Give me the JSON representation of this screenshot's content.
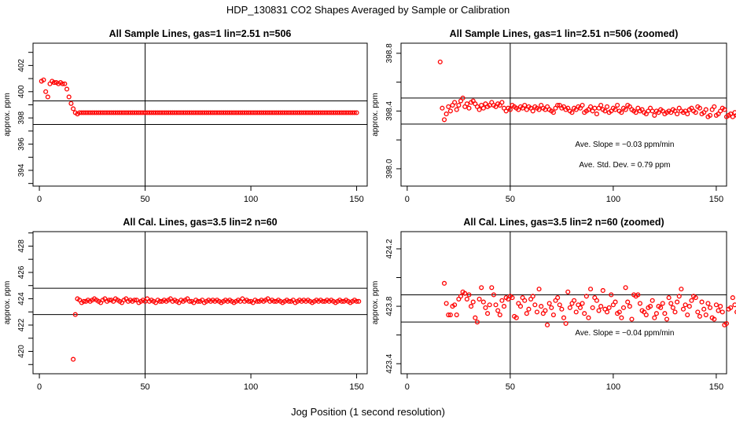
{
  "page": {
    "title": "HDP_130831  CO2 Shapes Averaged by Sample or Calibration",
    "xlabel": "Jog Position (1 second resolution)"
  },
  "colors": {
    "points": "#ff0000",
    "lines": "#000000"
  },
  "chart_data": [
    {
      "type": "scatter",
      "title": "All Sample Lines, gas=1 lin=2.51 n=506",
      "xlabel": "",
      "ylabel": "approx. ppm",
      "xlim": [
        -3,
        155
      ],
      "ylim": [
        392.8,
        403.7
      ],
      "xticks": [
        0,
        50,
        100,
        150
      ],
      "yticks": [
        394,
        396,
        398,
        400,
        402
      ],
      "hlines": [
        399.3,
        397.5
      ],
      "vline": 50,
      "annotations": [],
      "x_start": 1,
      "y": [
        400.8,
        400.9,
        400.0,
        399.6,
        400.6,
        400.8,
        400.7,
        400.7,
        400.6,
        400.7,
        400.6,
        400.6,
        400.2,
        399.6,
        399.1,
        398.7,
        398.4,
        398.3,
        398.4,
        398.4,
        398.4,
        398.4,
        398.4,
        398.4,
        398.4,
        398.4,
        398.4,
        398.4,
        398.4,
        398.4,
        398.4,
        398.4,
        398.4,
        398.4,
        398.4,
        398.4,
        398.4,
        398.4,
        398.4,
        398.4,
        398.4,
        398.4,
        398.4,
        398.4,
        398.4,
        398.4,
        398.4,
        398.4,
        398.4,
        398.4,
        398.4,
        398.4,
        398.4,
        398.4,
        398.4,
        398.4,
        398.4,
        398.4,
        398.4,
        398.4,
        398.4,
        398.4,
        398.4,
        398.4,
        398.4,
        398.4,
        398.4,
        398.4,
        398.4,
        398.4,
        398.4,
        398.4,
        398.4,
        398.4,
        398.4,
        398.4,
        398.4,
        398.4,
        398.4,
        398.4,
        398.4,
        398.4,
        398.4,
        398.4,
        398.4,
        398.4,
        398.4,
        398.4,
        398.4,
        398.4,
        398.4,
        398.4,
        398.4,
        398.4,
        398.4,
        398.4,
        398.4,
        398.4,
        398.4,
        398.4,
        398.4,
        398.4,
        398.4,
        398.4,
        398.4,
        398.4,
        398.4,
        398.4,
        398.4,
        398.4,
        398.4,
        398.4,
        398.4,
        398.4,
        398.4,
        398.4,
        398.4,
        398.4,
        398.4,
        398.4,
        398.4,
        398.4,
        398.4,
        398.4,
        398.4,
        398.4,
        398.4,
        398.4,
        398.4,
        398.4,
        398.4,
        398.4,
        398.4,
        398.4,
        398.4,
        398.4,
        398.4,
        398.4,
        398.4,
        398.4,
        398.4,
        398.4,
        398.4,
        398.4,
        398.4,
        398.4,
        398.4,
        398.4,
        398.4,
        398.4
      ]
    },
    {
      "type": "scatter",
      "title": "All Sample Lines, gas=1 lin=2.51 n=506 (zoomed)",
      "xlabel": "",
      "ylabel": "approx. ppm",
      "xlim": [
        -3,
        155
      ],
      "ylim": [
        397.88,
        398.87
      ],
      "xticks": [
        0,
        50,
        100,
        150
      ],
      "yticks": [
        398.0,
        398.4,
        398.8
      ],
      "ytick_labels": [
        "398.0",
        "398.4",
        "398.8"
      ],
      "hlines": [
        398.49,
        398.31
      ],
      "vline": 50,
      "annotations": [
        "Ave. Slope =  −0.03  ppm/min",
        "Ave. Std. Dev. =  0.79  ppm"
      ],
      "x_start": 16,
      "y": [
        398.74,
        398.42,
        398.34,
        398.38,
        398.43,
        398.4,
        398.44,
        398.46,
        398.41,
        398.44,
        398.47,
        398.49,
        398.43,
        398.45,
        398.42,
        398.46,
        398.47,
        398.45,
        398.43,
        398.41,
        398.44,
        398.42,
        398.45,
        398.43,
        398.44,
        398.46,
        398.44,
        398.43,
        398.45,
        398.44,
        398.46,
        398.42,
        398.4,
        398.42,
        398.41,
        398.44,
        398.43,
        398.42,
        398.41,
        398.43,
        398.42,
        398.44,
        398.41,
        398.43,
        398.42,
        398.4,
        398.43,
        398.42,
        398.41,
        398.44,
        398.42,
        398.41,
        398.43,
        398.41,
        398.4,
        398.39,
        398.42,
        398.44,
        398.44,
        398.42,
        398.43,
        398.41,
        398.42,
        398.4,
        398.39,
        398.42,
        398.41,
        398.43,
        398.42,
        398.44,
        398.39,
        398.4,
        398.41,
        398.43,
        398.4,
        398.42,
        398.38,
        398.42,
        398.44,
        398.41,
        398.4,
        398.43,
        398.39,
        398.4,
        398.42,
        398.41,
        398.44,
        398.4,
        398.39,
        398.42,
        398.41,
        398.44,
        398.43,
        398.41,
        398.4,
        398.39,
        398.42,
        398.4,
        398.41,
        398.39,
        398.38,
        398.4,
        398.42,
        398.4,
        398.37,
        398.4,
        398.39,
        398.41,
        398.4,
        398.38,
        398.39,
        398.4,
        398.39,
        398.41,
        398.4,
        398.38,
        398.42,
        398.4,
        398.39,
        398.4,
        398.38,
        398.41,
        398.42,
        398.4,
        398.39,
        398.43,
        398.42,
        398.38,
        398.39,
        398.41,
        398.36,
        398.37,
        398.41,
        398.43,
        398.37,
        398.38,
        398.4,
        398.42,
        398.41,
        398.36,
        398.37,
        398.38,
        398.36,
        398.39,
        398.37,
        398.39,
        398.44,
        398.42,
        398.4,
        398.41
      ]
    },
    {
      "type": "scatter",
      "title": "All Cal. Lines, gas=3.5 lin=2 n=60",
      "xlabel": "",
      "ylabel": "approx. ppm",
      "xlim": [
        -3,
        155
      ],
      "ylim": [
        418.3,
        429.1
      ],
      "xticks": [
        0,
        50,
        100,
        150
      ],
      "yticks": [
        420,
        422,
        424,
        426,
        428
      ],
      "hlines": [
        424.8,
        422.8
      ],
      "vline": 50,
      "annotations": [],
      "x_start": 16,
      "y": [
        419.4,
        422.8,
        424.0,
        423.9,
        423.7,
        423.8,
        423.8,
        423.9,
        423.8,
        423.9,
        424.0,
        423.9,
        423.8,
        423.7,
        423.9,
        424.0,
        423.8,
        423.9,
        423.9,
        423.8,
        424.0,
        423.9,
        423.8,
        423.7,
        423.9,
        424.0,
        423.8,
        423.9,
        423.8,
        423.9,
        423.9,
        423.7,
        423.8,
        423.9,
        423.8,
        424.0,
        423.8,
        423.9,
        423.8,
        423.7,
        423.9,
        423.8,
        423.8,
        423.9,
        423.8,
        423.9,
        424.0,
        423.8,
        423.9,
        423.8,
        423.7,
        423.9,
        423.8,
        423.9,
        424.0,
        423.8,
        423.8,
        423.7,
        423.9,
        423.8,
        423.8,
        423.9,
        423.7,
        423.8,
        423.9,
        423.8,
        423.9,
        423.8,
        423.9,
        423.8,
        423.7,
        423.8,
        423.9,
        423.8,
        423.9,
        423.8,
        423.7,
        423.8,
        423.9,
        423.8,
        424.0,
        423.8,
        423.9,
        423.8,
        423.8,
        423.7,
        423.9,
        423.8,
        423.8,
        423.9,
        423.8,
        423.9,
        424.0,
        423.8,
        423.9,
        423.8,
        423.8,
        423.9,
        423.8,
        423.7,
        423.8,
        423.9,
        423.8,
        423.8,
        423.9,
        423.7,
        423.8,
        423.9,
        423.8,
        423.9,
        423.8,
        423.9,
        423.8,
        423.7,
        423.8,
        423.9,
        423.8,
        423.9,
        423.8,
        423.8,
        423.9,
        423.8,
        423.9,
        423.8,
        423.7,
        423.8,
        423.9,
        423.8,
        423.8,
        423.9,
        423.8,
        423.7,
        423.8,
        423.9,
        423.8,
        423.8
      ]
    },
    {
      "type": "scatter",
      "title": "All Cal. Lines, gas=3.5 lin=2 n=60 (zoomed)",
      "xlabel": "",
      "ylabel": "approx. ppm",
      "xlim": [
        -3,
        155
      ],
      "ylim": [
        423.33,
        424.32
      ],
      "xticks": [
        0,
        50,
        100,
        150
      ],
      "yticks": [
        423.4,
        423.8,
        424.2
      ],
      "ytick_labels": [
        "423.4",
        "423.8",
        "424.2"
      ],
      "hlines": [
        423.88,
        423.69
      ],
      "vline": 50,
      "annotations": [
        "Ave. Slope =  −0.04  ppm/min"
      ],
      "x_start": 18,
      "y": [
        423.96,
        423.82,
        423.74,
        423.74,
        423.8,
        423.81,
        423.74,
        423.85,
        423.87,
        423.9,
        423.89,
        423.85,
        423.88,
        423.8,
        423.83,
        423.72,
        423.69,
        423.85,
        423.93,
        423.83,
        423.79,
        423.75,
        423.81,
        423.93,
        423.88,
        423.81,
        423.77,
        423.74,
        423.84,
        423.8,
        423.86,
        423.85,
        423.87,
        423.86,
        423.73,
        423.72,
        423.82,
        423.8,
        423.86,
        423.84,
        423.75,
        423.78,
        423.85,
        423.87,
        423.81,
        423.76,
        423.92,
        423.8,
        423.75,
        423.77,
        423.67,
        423.82,
        423.79,
        423.74,
        423.84,
        423.86,
        423.81,
        423.78,
        423.72,
        423.68,
        423.9,
        423.79,
        423.82,
        423.84,
        423.76,
        423.81,
        423.79,
        423.82,
        423.75,
        423.87,
        423.72,
        423.92,
        423.79,
        423.86,
        423.84,
        423.77,
        423.8,
        423.91,
        423.78,
        423.76,
        423.79,
        423.88,
        423.81,
        423.83,
        423.75,
        423.76,
        423.72,
        423.79,
        423.93,
        423.83,
        423.8,
        423.71,
        423.88,
        423.87,
        423.88,
        423.82,
        423.77,
        423.76,
        423.74,
        423.79,
        423.8,
        423.84,
        423.72,
        423.75,
        423.8,
        423.79,
        423.82,
        423.75,
        423.71,
        423.86,
        423.82,
        423.79,
        423.76,
        423.83,
        423.87,
        423.92,
        423.78,
        423.81,
        423.74,
        423.8,
        423.84,
        423.87,
        423.86,
        423.76,
        423.73,
        423.83,
        423.78,
        423.74,
        423.82,
        423.79,
        423.72,
        423.71,
        423.81,
        423.77,
        423.8,
        423.76,
        423.67,
        423.68,
        423.78,
        423.79,
        423.86,
        423.81,
        423.76,
        423.74,
        423.79,
        423.8,
        423.81,
        423.73,
        423.69,
        423.78,
        423.74,
        423.76,
        423.74,
        423.68,
        423.69,
        423.7
      ]
    }
  ]
}
